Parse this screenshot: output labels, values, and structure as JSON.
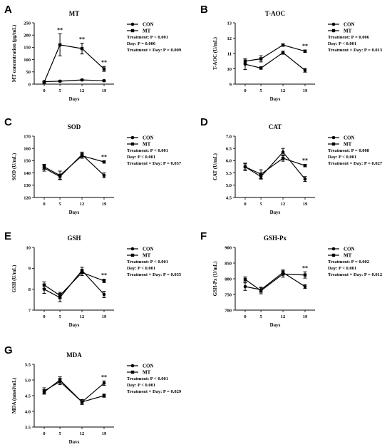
{
  "chart_data": [
    {
      "panel": "A",
      "type": "line",
      "title": "MT",
      "xlabel": "Days",
      "ylabel": "MT concentration (pg/mL)",
      "x": [
        0,
        5,
        12,
        19
      ],
      "xticks": [
        "0",
        "5",
        "12",
        "19"
      ],
      "ylim": [
        0,
        250
      ],
      "yticks": [
        0,
        50,
        100,
        150,
        200,
        250
      ],
      "series": [
        {
          "name": "CON",
          "values": [
            10,
            12,
            17,
            14
          ],
          "errors": [
            2,
            3,
            3,
            3
          ]
        },
        {
          "name": "MT",
          "values": [
            8,
            160,
            145,
            62
          ],
          "errors": [
            3,
            45,
            22,
            10
          ]
        }
      ],
      "significance": [
        {
          "x": 5,
          "label": "**"
        },
        {
          "x": 12,
          "label": "**"
        },
        {
          "x": 19,
          "label": "**"
        }
      ],
      "stats": [
        "Treatment: P < 0.001",
        "Day: P = 0.006",
        "Treatment × Day: P = 0.009"
      ]
    },
    {
      "panel": "B",
      "type": "line",
      "title": "T-AOC",
      "xlabel": "Days",
      "ylabel": "T-AOC  (U/mL)",
      "x": [
        0,
        5,
        12,
        19
      ],
      "xticks": [
        "0",
        "5",
        "12",
        "19"
      ],
      "ylim": [
        9,
        13
      ],
      "yticks": [
        9,
        10,
        11,
        12,
        13
      ],
      "series": [
        {
          "name": "CON",
          "values": [
            10.3,
            10.05,
            11.05,
            9.9
          ],
          "errors": [
            0.35,
            0.08,
            0.1,
            0.12
          ]
        },
        {
          "name": "MT",
          "values": [
            10.5,
            10.65,
            11.55,
            11.15
          ],
          "errors": [
            0.15,
            0.2,
            0.08,
            0.08
          ]
        }
      ],
      "significance": [
        {
          "x": 19,
          "label": "**"
        }
      ],
      "stats": [
        "Treatment: P = 0.006",
        "Day: P < 0.001",
        "Treatment × Day: P = 0.013"
      ]
    },
    {
      "panel": "C",
      "type": "line",
      "title": "SOD",
      "xlabel": "Days",
      "ylabel": "SOD  (U/mL)",
      "x": [
        0,
        5,
        12,
        19
      ],
      "xticks": [
        "0",
        "5",
        "12",
        "19"
      ],
      "ylim": [
        120,
        170
      ],
      "yticks": [
        120,
        130,
        140,
        150,
        160,
        170
      ],
      "series": [
        {
          "name": "CON",
          "values": [
            144,
            137,
            155,
            138
          ],
          "errors": [
            2.5,
            2,
            2,
            2
          ]
        },
        {
          "name": "MT",
          "values": [
            145,
            138,
            154,
            149
          ],
          "errors": [
            2,
            3.5,
            2,
            1
          ]
        }
      ],
      "significance": [
        {
          "x": 19,
          "label": "**"
        }
      ],
      "stats": [
        "Treatment: P < 0.001",
        "Day: P < 0.001",
        "Treatment × Day: P = 0.037"
      ]
    },
    {
      "panel": "D",
      "type": "line",
      "title": "CAT",
      "xlabel": "Days",
      "ylabel": "CAT  (U/mL)",
      "x": [
        0,
        5,
        12,
        19
      ],
      "xticks": [
        "0",
        "5",
        "12",
        "19"
      ],
      "ylim": [
        4.5,
        7.0
      ],
      "yticks": [
        4.5,
        5.0,
        5.5,
        6.0,
        6.5,
        7.0
      ],
      "ytick_labels": [
        "4.5",
        "5.0",
        "5.5",
        "6.0",
        "6.5",
        "7.0"
      ],
      "series": [
        {
          "name": "CON",
          "values": [
            5.75,
            5.35,
            6.35,
            5.25
          ],
          "errors": [
            0.15,
            0.1,
            0.15,
            0.1
          ]
        },
        {
          "name": "MT",
          "values": [
            5.75,
            5.45,
            6.1,
            5.8
          ],
          "errors": [
            0.12,
            0.18,
            0.12,
            0.05
          ]
        }
      ],
      "significance": [
        {
          "x": 19,
          "label": "**"
        }
      ],
      "stats": [
        "Treatment: P = 0.008",
        "Day: P < 0.001",
        "Treatment × Day: P = 0.027"
      ]
    },
    {
      "panel": "E",
      "type": "line",
      "title": "GSH",
      "xlabel": "Days",
      "ylabel": "GSH  (U/mL)",
      "x": [
        0,
        5,
        12,
        19
      ],
      "xticks": [
        "0",
        "5",
        "12",
        "19"
      ],
      "ylim": [
        7,
        10
      ],
      "yticks": [
        7,
        8,
        9,
        10
      ],
      "series": [
        {
          "name": "CON",
          "values": [
            8.0,
            7.6,
            8.9,
            7.75
          ],
          "errors": [
            0.2,
            0.2,
            0.15,
            0.15
          ]
        },
        {
          "name": "MT",
          "values": [
            8.2,
            7.7,
            8.8,
            8.4
          ],
          "errors": [
            0.15,
            0.15,
            0.15,
            0.08
          ]
        }
      ],
      "significance": [
        {
          "x": 19,
          "label": "**"
        }
      ],
      "stats": [
        "Treatment: P < 0.001",
        "Day: P < 0.001",
        "Treatment × Day: P = 0.035"
      ]
    },
    {
      "panel": "F",
      "type": "line",
      "title": "GSH-Px",
      "xlabel": "Days",
      "ylabel": "GSH-Px  (U/mL)",
      "x": [
        0,
        5,
        12,
        19
      ],
      "xticks": [
        "0",
        "5",
        "12",
        "19"
      ],
      "ylim": [
        700,
        900
      ],
      "yticks": [
        700,
        750,
        800,
        850,
        900
      ],
      "series": [
        {
          "name": "CON",
          "values": [
            775,
            765,
            820,
            775
          ],
          "errors": [
            12,
            8,
            8,
            6
          ]
        },
        {
          "name": "MT",
          "values": [
            798,
            762,
            815,
            812
          ],
          "errors": [
            8,
            10,
            10,
            10
          ]
        }
      ],
      "significance": [
        {
          "x": 19,
          "label": "**"
        }
      ],
      "stats": [
        "Treatment: P = 0.002",
        "Day: P < 0.001",
        "Treatment × Day: P = 0.012"
      ]
    },
    {
      "panel": "G",
      "type": "line",
      "title": "MDA",
      "xlabel": "Days",
      "ylabel": "MDA (nmol/mL)",
      "x": [
        0,
        5,
        12,
        19
      ],
      "xticks": [
        "0",
        "5",
        "12",
        "19"
      ],
      "ylim": [
        3.5,
        5.5
      ],
      "yticks": [
        3.5,
        4.0,
        4.5,
        5.0,
        5.5
      ],
      "ytick_labels": [
        "3.5",
        "4.0",
        "4.5",
        "5.0",
        "5.5"
      ],
      "series": [
        {
          "name": "CON",
          "values": [
            4.65,
            4.95,
            4.3,
            4.9
          ],
          "errors": [
            0.1,
            0.1,
            0.07,
            0.07
          ]
        },
        {
          "name": "MT",
          "values": [
            4.62,
            5.0,
            4.3,
            4.5
          ],
          "errors": [
            0.07,
            0.1,
            0.08,
            0.05
          ]
        }
      ],
      "significance": [
        {
          "x": 19,
          "label": "**"
        }
      ],
      "stats": [
        "Treatment: P < 0.001",
        "Day: P < 0.001",
        "Treatment × Day: P = 0.029"
      ]
    }
  ]
}
